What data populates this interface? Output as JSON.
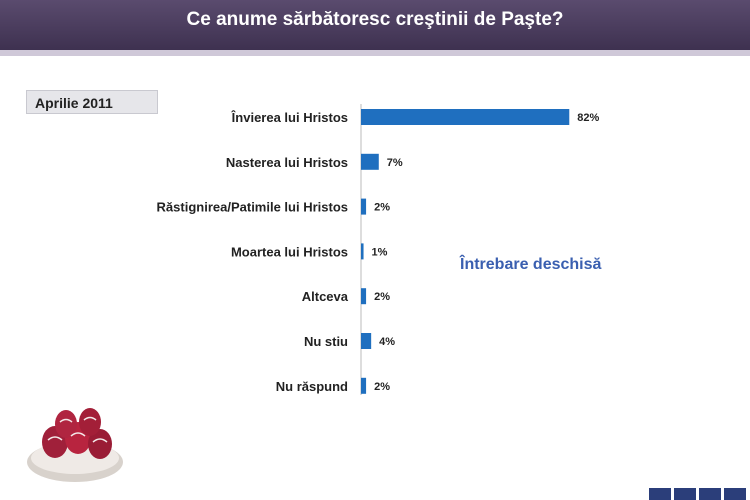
{
  "header": {
    "title": "Ce anume sărbătoresc creştinii de Paşte?"
  },
  "date_badge": "Aprilie 2011",
  "note": "Întrebare deschisă",
  "colors": {
    "bar": "#1f6fbf",
    "header": "#4a3d5e"
  },
  "chart_data": {
    "type": "bar",
    "orientation": "horizontal",
    "categories": [
      "Învierea lui Hristos",
      "Nasterea lui Hristos",
      "Răstignirea/Patimile lui Hristos",
      "Moartea lui Hristos",
      "Altceva",
      "Nu stiu",
      "Nu răspund"
    ],
    "values": [
      82,
      7,
      2,
      1,
      2,
      4,
      2
    ],
    "value_labels": [
      "82%",
      "7%",
      "2%",
      "1%",
      "2%",
      "4%",
      "2%"
    ],
    "xlim": [
      0,
      100
    ]
  }
}
